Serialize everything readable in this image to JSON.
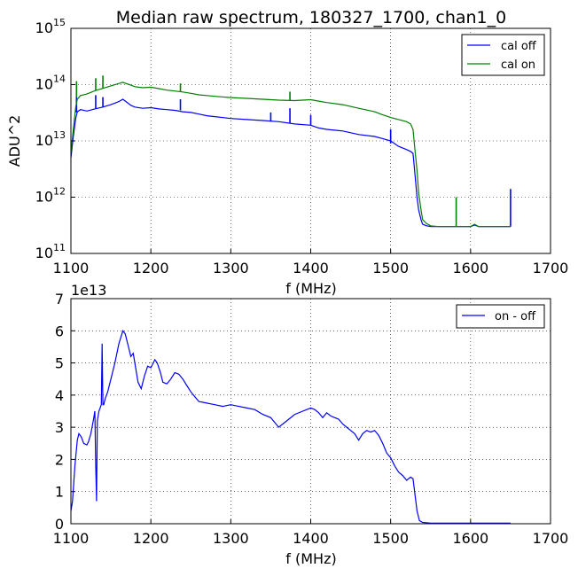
{
  "chart_data": [
    {
      "type": "line",
      "title": "Median raw spectrum, 180327_1700, chan1_0",
      "xlabel": "f (MHz)",
      "ylabel": "ADU^2",
      "yscale": "log",
      "xlim": [
        1100,
        1700
      ],
      "ylim_exponent": [
        11,
        15
      ],
      "x_ticks": [
        "1100",
        "1200",
        "1300",
        "1400",
        "1500",
        "1600",
        "1700"
      ],
      "y_tick_base": "10",
      "y_tick_exponents": [
        "11",
        "12",
        "13",
        "14",
        "15"
      ],
      "grid": true,
      "legend": "top-right",
      "series": [
        {
          "name": "cal off",
          "color": "#0000ff",
          "x": [
            1100,
            1103,
            1106,
            1108,
            1112,
            1120,
            1130,
            1140,
            1150,
            1160,
            1165,
            1175,
            1180,
            1190,
            1200,
            1210,
            1220,
            1230,
            1240,
            1250,
            1260,
            1270,
            1280,
            1300,
            1320,
            1340,
            1360,
            1380,
            1400,
            1410,
            1420,
            1440,
            1460,
            1480,
            1490,
            1500,
            1510,
            1520,
            1525,
            1528,
            1530,
            1533,
            1535,
            1538,
            1540,
            1545,
            1550,
            1560,
            1580,
            1600,
            1605,
            1610,
            1620,
            1650
          ],
          "y": [
            5000000000000.0,
            12000000000000.0,
            25000000000000.0,
            33000000000000.0,
            36000000000000.0,
            34000000000000.0,
            37000000000000.0,
            40000000000000.0,
            44000000000000.0,
            50000000000000.0,
            55000000000000.0,
            43000000000000.0,
            40000000000000.0,
            38000000000000.0,
            39000000000000.0,
            37000000000000.0,
            36000000000000.0,
            35000000000000.0,
            33000000000000.0,
            32000000000000.0,
            30000000000000.0,
            28000000000000.0,
            27000000000000.0,
            25000000000000.0,
            24000000000000.0,
            23000000000000.0,
            22000000000000.0,
            20000000000000.0,
            19000000000000.0,
            17000000000000.0,
            16000000000000.0,
            15000000000000.0,
            13000000000000.0,
            12000000000000.0,
            11000000000000.0,
            10000000000000.0,
            8000000000000.0,
            7000000000000.0,
            6500000000000.0,
            6000000000000.0,
            3000000000000.0,
            1000000000000.0,
            600000000000.0,
            400000000000.0,
            330000000000.0,
            310000000000.0,
            300000000000.0,
            300000000000.0,
            300000000000.0,
            300000000000.0,
            320000000000.0,
            300000000000.0,
            300000000000.0,
            300000000000.0
          ],
          "spikes": [
            [
              1107,
              32000000000000.0,
              60000000000000.0
            ],
            [
              1131,
              38000000000000.0,
              65000000000000.0
            ],
            [
              1140,
              40000000000000.0,
              60000000000000.0
            ],
            [
              1237,
              35000000000000.0,
              55000000000000.0
            ],
            [
              1350,
              22000000000000.0,
              32000000000000.0
            ],
            [
              1374,
              21000000000000.0,
              38000000000000.0
            ],
            [
              1400,
              19000000000000.0,
              29000000000000.0
            ],
            [
              1500,
              9000000000000.0,
              16000000000000.0
            ],
            [
              1650,
              300000000000.0,
              1400000000000.0
            ]
          ]
        },
        {
          "name": "cal on",
          "color": "#008000",
          "x": [
            1100,
            1103,
            1106,
            1108,
            1112,
            1120,
            1130,
            1140,
            1150,
            1160,
            1165,
            1175,
            1180,
            1190,
            1200,
            1210,
            1220,
            1230,
            1240,
            1250,
            1260,
            1270,
            1280,
            1300,
            1320,
            1340,
            1360,
            1380,
            1400,
            1410,
            1420,
            1440,
            1460,
            1480,
            1490,
            1500,
            1510,
            1520,
            1525,
            1528,
            1530,
            1533,
            1535,
            1538,
            1540,
            1545,
            1550,
            1560,
            1580,
            1600,
            1605,
            1610,
            1620,
            1650
          ],
          "y": [
            6000000000000.0,
            16000000000000.0,
            40000000000000.0,
            55000000000000.0,
            64000000000000.0,
            68000000000000.0,
            78000000000000.0,
            86000000000000.0,
            95000000000000.0,
            105000000000000.0,
            110000000000000.0,
            98000000000000.0,
            92000000000000.0,
            88000000000000.0,
            90000000000000.0,
            85000000000000.0,
            80000000000000.0,
            77000000000000.0,
            74000000000000.0,
            70000000000000.0,
            66000000000000.0,
            64000000000000.0,
            62000000000000.0,
            59000000000000.0,
            57000000000000.0,
            55000000000000.0,
            53000000000000.0,
            52000000000000.0,
            54000000000000.0,
            51000000000000.0,
            48000000000000.0,
            44000000000000.0,
            38000000000000.0,
            33000000000000.0,
            29000000000000.0,
            26000000000000.0,
            24000000000000.0,
            22000000000000.0,
            20000000000000.0,
            16000000000000.0,
            8000000000000.0,
            3000000000000.0,
            1200000000000.0,
            600000000000.0,
            400000000000.0,
            340000000000.0,
            310000000000.0,
            300000000000.0,
            300000000000.0,
            300000000000.0,
            330000000000.0,
            300000000000.0,
            300000000000.0,
            300000000000.0
          ],
          "spikes": [
            [
              1107,
              60000000000000.0,
              115000000000000.0
            ],
            [
              1131,
              78000000000000.0,
              130000000000000.0
            ],
            [
              1140,
              86000000000000.0,
              145000000000000.0
            ],
            [
              1237,
              76000000000000.0,
              105000000000000.0
            ],
            [
              1374,
              52000000000000.0,
              75000000000000.0
            ],
            [
              1582,
              300000000000.0,
              1000000000000.0
            ]
          ]
        }
      ]
    },
    {
      "type": "line",
      "title": "",
      "xlabel": "f (MHz)",
      "ylabel": "",
      "offset_text": "1e13",
      "xlim": [
        1100,
        1700
      ],
      "ylim": [
        0,
        7
      ],
      "x_ticks": [
        "1100",
        "1200",
        "1300",
        "1400",
        "1500",
        "1600",
        "1700"
      ],
      "y_ticks": [
        "0",
        "1",
        "2",
        "3",
        "4",
        "5",
        "6",
        "7"
      ],
      "grid": true,
      "legend": "top-right",
      "series": [
        {
          "name": "on - off",
          "color": "#0000ff",
          "units": "1e13 ADU^2",
          "x": [
            1100,
            1102,
            1105,
            1108,
            1110,
            1113,
            1116,
            1120,
            1122,
            1125,
            1128,
            1130,
            1131,
            1132,
            1133,
            1135,
            1138,
            1139,
            1140,
            1141,
            1143,
            1146,
            1150,
            1155,
            1160,
            1165,
            1168,
            1172,
            1175,
            1178,
            1180,
            1184,
            1188,
            1192,
            1196,
            1200,
            1205,
            1208,
            1212,
            1215,
            1220,
            1225,
            1230,
            1235,
            1240,
            1245,
            1250,
            1255,
            1260,
            1270,
            1280,
            1290,
            1300,
            1310,
            1320,
            1330,
            1340,
            1350,
            1355,
            1360,
            1365,
            1370,
            1380,
            1390,
            1400,
            1405,
            1410,
            1415,
            1420,
            1425,
            1430,
            1435,
            1440,
            1445,
            1450,
            1455,
            1460,
            1465,
            1470,
            1475,
            1480,
            1485,
            1490,
            1495,
            1500,
            1505,
            1510,
            1515,
            1520,
            1525,
            1528,
            1530,
            1533,
            1536,
            1540,
            1550,
            1580,
            1650
          ],
          "y": [
            0.4,
            0.7,
            1.8,
            2.6,
            2.8,
            2.7,
            2.5,
            2.45,
            2.55,
            2.8,
            3.2,
            3.5,
            1.8,
            0.7,
            3.2,
            3.5,
            3.7,
            5.6,
            3.7,
            3.7,
            3.9,
            4.1,
            4.5,
            5.0,
            5.6,
            6.0,
            5.9,
            5.5,
            5.2,
            5.3,
            5.0,
            4.4,
            4.2,
            4.6,
            4.9,
            4.85,
            5.1,
            5.0,
            4.7,
            4.4,
            4.35,
            4.5,
            4.7,
            4.65,
            4.5,
            4.3,
            4.1,
            3.95,
            3.8,
            3.75,
            3.7,
            3.65,
            3.7,
            3.65,
            3.6,
            3.55,
            3.4,
            3.3,
            3.15,
            3.0,
            3.1,
            3.2,
            3.4,
            3.5,
            3.6,
            3.55,
            3.45,
            3.3,
            3.45,
            3.35,
            3.3,
            3.25,
            3.1,
            3.0,
            2.9,
            2.8,
            2.6,
            2.8,
            2.9,
            2.85,
            2.9,
            2.75,
            2.5,
            2.2,
            2.05,
            1.8,
            1.6,
            1.5,
            1.35,
            1.45,
            1.4,
            1.0,
            0.4,
            0.1,
            0.04,
            0.02,
            0.02,
            0.02
          ]
        }
      ]
    }
  ]
}
